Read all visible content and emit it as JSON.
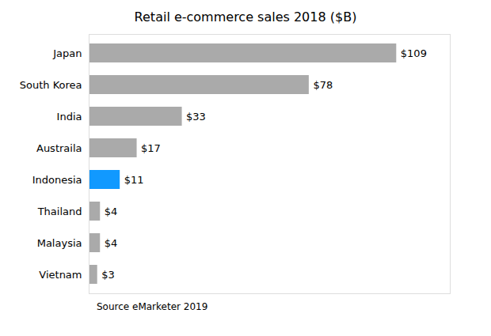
{
  "chart_data": {
    "type": "bar",
    "orientation": "horizontal",
    "title": "Retail e-commerce sales 2018 ($B)",
    "annotations": [
      "Source eMarketer 2019"
    ],
    "categories": [
      "Japan",
      "South Korea",
      "India",
      "Austraila",
      "Indonesia",
      "Thailand",
      "Malaysia",
      "Vietnam"
    ],
    "values": [
      109,
      78,
      33,
      17,
      11,
      4,
      4,
      3
    ],
    "value_labels": [
      "$109",
      "$78",
      "$33",
      "$17",
      "$11",
      "$4",
      "$4",
      "$3"
    ],
    "colors": [
      "#aaaaaa",
      "#aaaaaa",
      "#aaaaaa",
      "#aaaaaa",
      "#1199ff",
      "#aaaaaa",
      "#aaaaaa",
      "#aaaaaa"
    ],
    "xlim": [
      0,
      128
    ],
    "data_labels": true,
    "tick_labels": "y",
    "grid": false
  }
}
